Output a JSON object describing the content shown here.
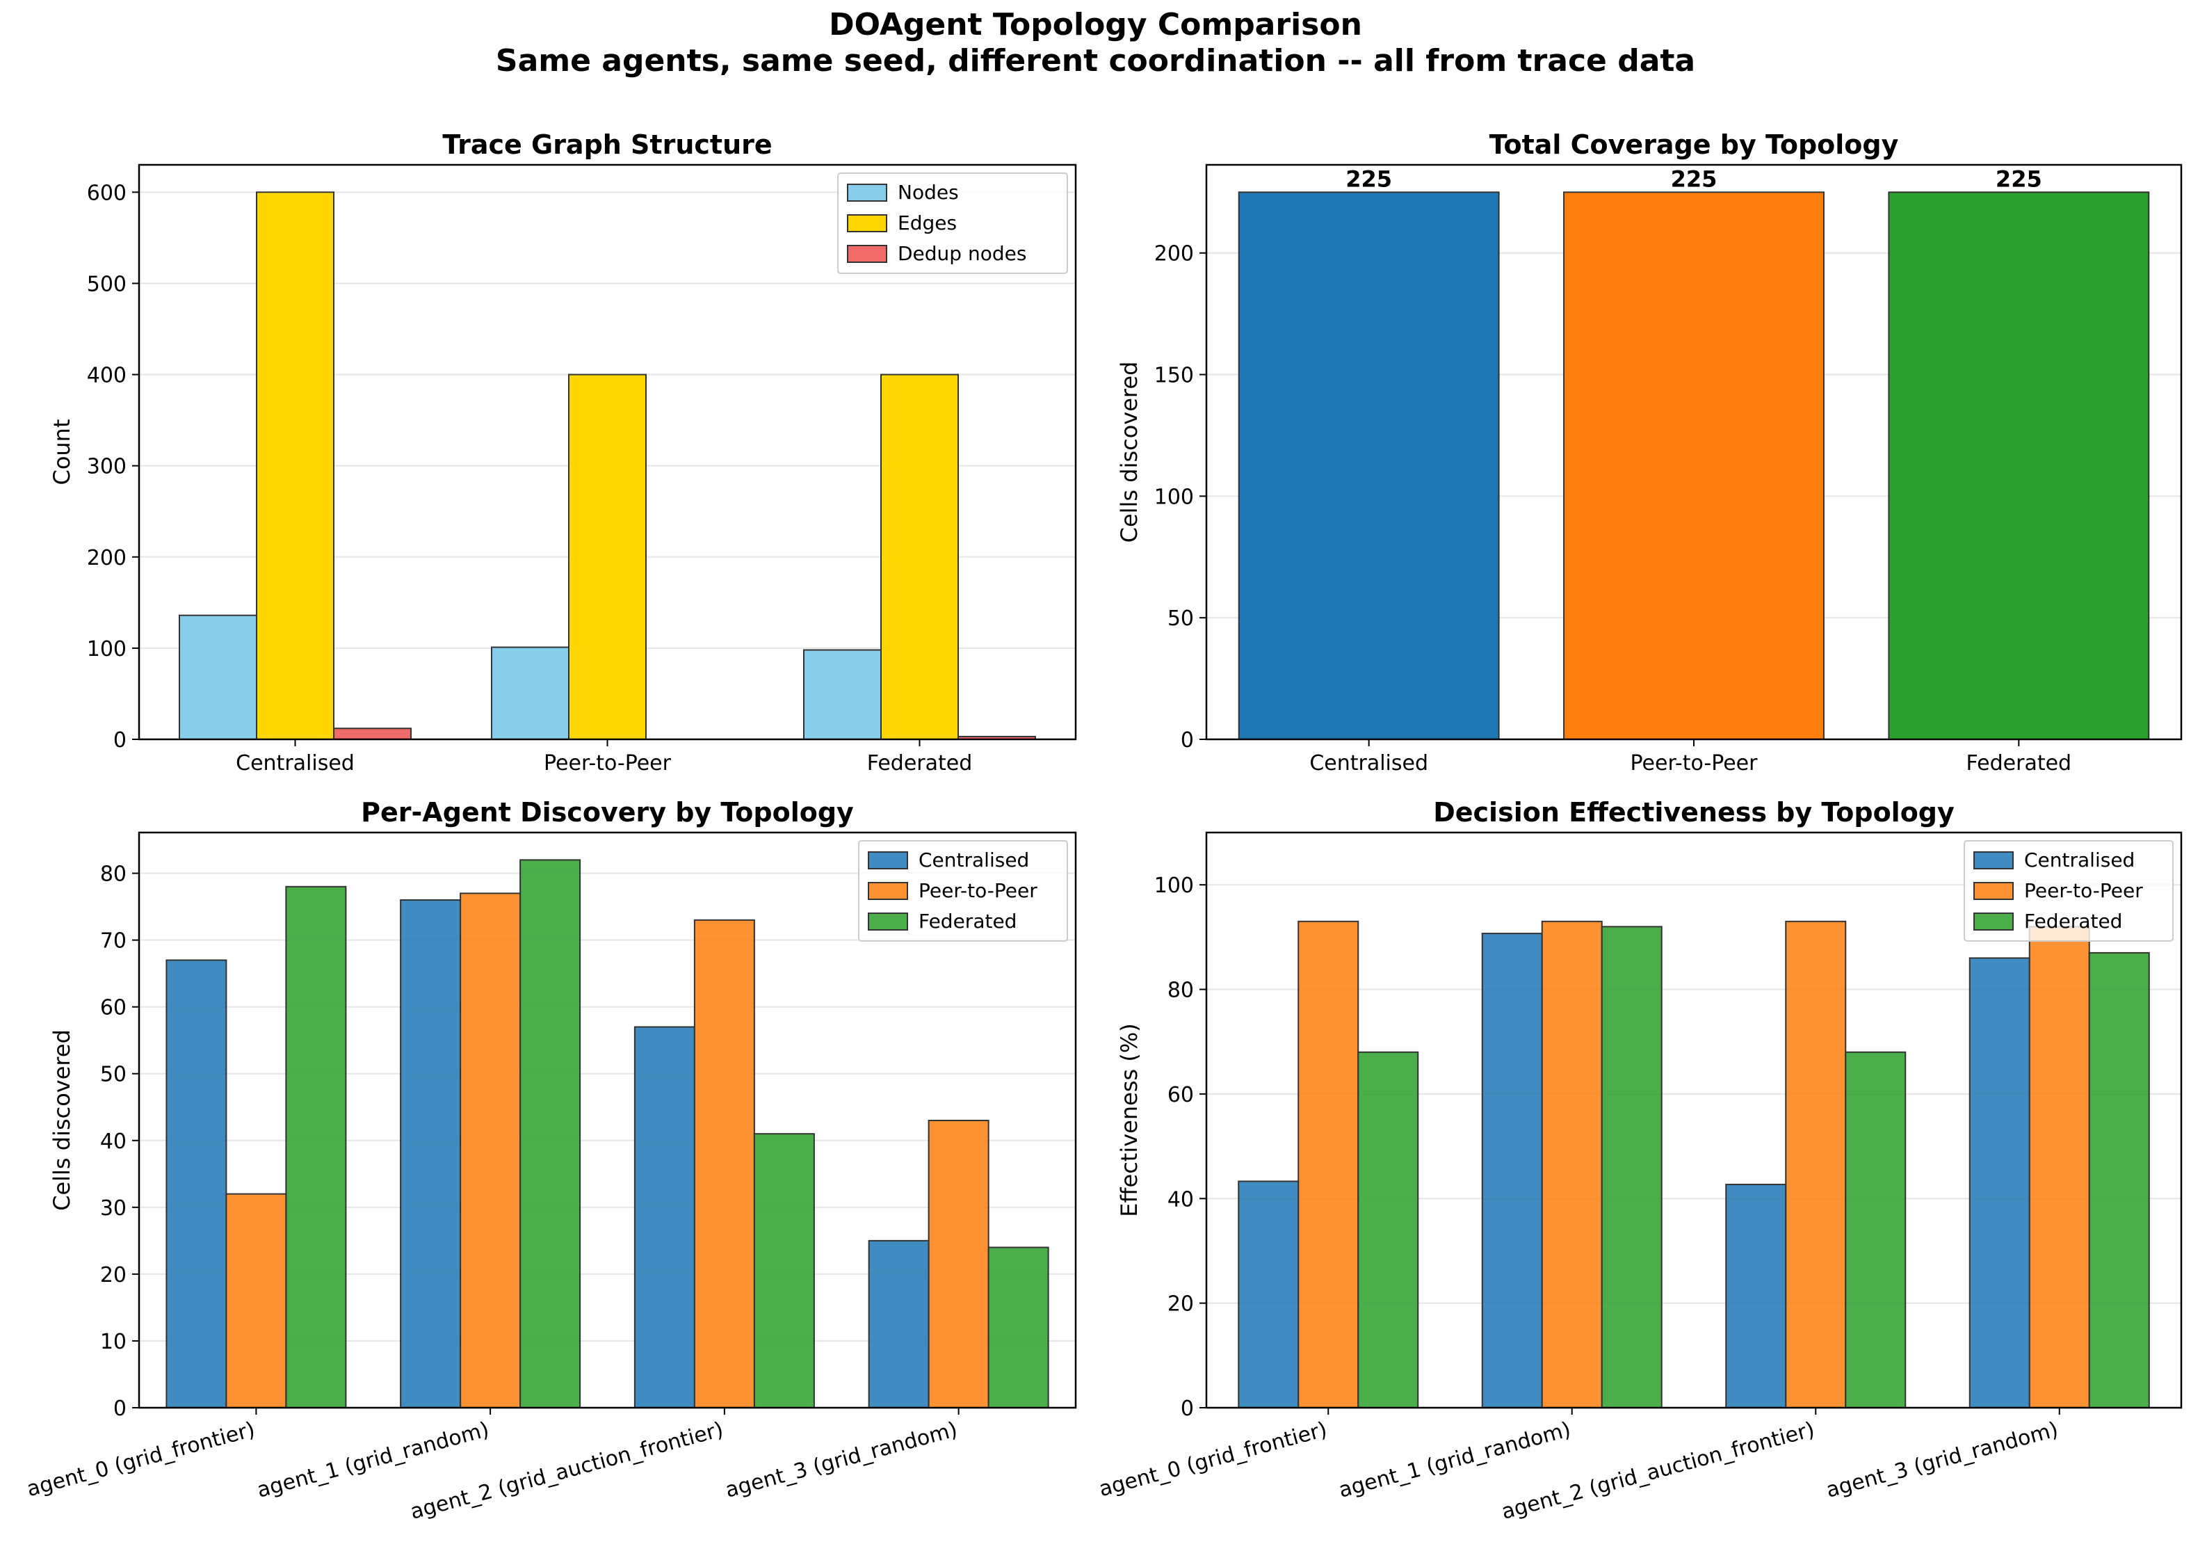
{
  "figure": {
    "title": "DOAgent Topology Comparison",
    "subtitle": "Same agents, same seed, different coordination -- all from trace data"
  },
  "colors": {
    "nodes": "#87ceeb",
    "edges": "#ffd700",
    "dedup": "#f26b6b",
    "centralised": "#1f77b4",
    "peer_to_peer": "#ff7f0e",
    "federated": "#2ca02c",
    "edge_stroke": "#333333"
  },
  "chart_data": [
    {
      "type": "bar",
      "title": "Trace Graph Structure",
      "xlabel": "",
      "ylabel": "Count",
      "categories": [
        "Centralised",
        "Peer-to-Peer",
        "Federated"
      ],
      "series": [
        {
          "name": "Nodes",
          "values": [
            136,
            101,
            98
          ]
        },
        {
          "name": "Edges",
          "values": [
            600,
            400,
            400
          ]
        },
        {
          "name": "Dedup nodes",
          "values": [
            12,
            0,
            3
          ]
        }
      ],
      "ylim": [
        0,
        630
      ],
      "yticks": [
        0,
        100,
        200,
        300,
        400,
        500,
        600
      ],
      "grid": "y",
      "legend": "top-right"
    },
    {
      "type": "bar",
      "title": "Total Coverage by Topology",
      "xlabel": "",
      "ylabel": "Cells discovered",
      "categories": [
        "Centralised",
        "Peer-to-Peer",
        "Federated"
      ],
      "values": [
        225,
        225,
        225
      ],
      "data_labels": [
        "225",
        "225",
        "225"
      ],
      "ylim": [
        0,
        236.25
      ],
      "yticks": [
        0,
        50,
        100,
        150,
        200
      ],
      "grid": "y"
    },
    {
      "type": "bar",
      "title": "Per-Agent Discovery by Topology",
      "xlabel": "",
      "ylabel": "Cells discovered",
      "categories": [
        "agent_0 (grid_frontier)",
        "agent_1 (grid_random)",
        "agent_2 (grid_auction_frontier)",
        "agent_3 (grid_random)"
      ],
      "series": [
        {
          "name": "Centralised",
          "values": [
            67,
            76,
            57,
            25
          ]
        },
        {
          "name": "Peer-to-Peer",
          "values": [
            32,
            77,
            73,
            43
          ]
        },
        {
          "name": "Federated",
          "values": [
            78,
            82,
            41,
            24
          ]
        }
      ],
      "ylim": [
        0,
        86.1
      ],
      "yticks": [
        0,
        10,
        20,
        30,
        40,
        50,
        60,
        70,
        80
      ],
      "grid": "y",
      "legend": "top-right"
    },
    {
      "type": "bar",
      "title": "Decision Effectiveness by Topology",
      "xlabel": "",
      "ylabel": "Effectiveness (%)",
      "categories": [
        "agent_0 (grid_frontier)",
        "agent_1 (grid_random)",
        "agent_2 (grid_auction_frontier)",
        "agent_3 (grid_random)"
      ],
      "series": [
        {
          "name": "Centralised",
          "values": [
            43.3,
            90.7,
            42.7,
            86
          ]
        },
        {
          "name": "Peer-to-Peer",
          "values": [
            93,
            93,
            93,
            92
          ]
        },
        {
          "name": "Federated",
          "values": [
            68,
            92,
            68,
            87
          ]
        }
      ],
      "ylim": [
        0,
        110
      ],
      "yticks": [
        0,
        20,
        40,
        60,
        80,
        100
      ],
      "grid": "y",
      "legend": "top-right"
    }
  ]
}
